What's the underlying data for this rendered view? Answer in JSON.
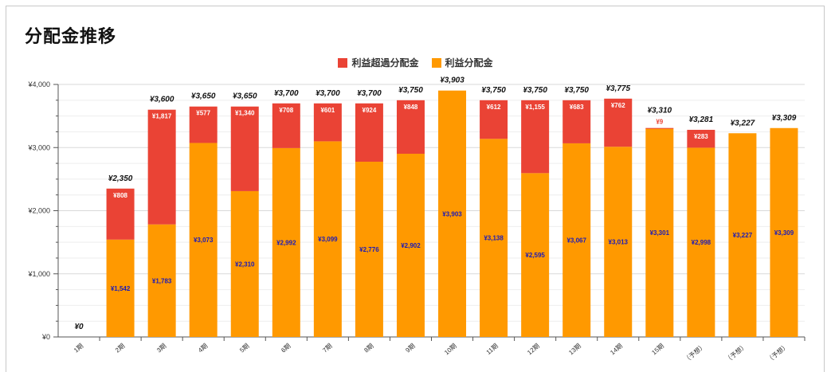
{
  "title": "分配金推移",
  "legend": [
    {
      "name": "利益超過分配金",
      "color": "#ea4335"
    },
    {
      "name": "利益分配金",
      "color": "#ff9900"
    }
  ],
  "chart_data": {
    "type": "bar",
    "stacked": true,
    "title": "分配金推移",
    "categories": [
      "1期",
      "2期",
      "3期",
      "4期",
      "5期",
      "6期",
      "7期",
      "8期",
      "9期",
      "10期",
      "11期",
      "12期",
      "13期",
      "14期",
      "15期",
      "（予想）",
      "（予想）",
      "（予想）"
    ],
    "series": [
      {
        "name": "利益分配金",
        "color": "#ff9900",
        "values": [
          0,
          1542,
          1783,
          3073,
          2310,
          2992,
          3099,
          2776,
          2902,
          3903,
          3138,
          2595,
          3067,
          3013,
          3301,
          2998,
          3227,
          3309
        ],
        "labels": [
          "",
          "¥1,542",
          "¥1,783",
          "¥3,073",
          "¥2,310",
          "¥2,992",
          "¥3,099",
          "¥2,776",
          "¥2,902",
          "¥3,903",
          "¥3,138",
          "¥2,595",
          "¥3,067",
          "¥3,013",
          "¥3,301",
          "¥2,998",
          "¥3,227",
          "¥3,309"
        ]
      },
      {
        "name": "利益超過分配金",
        "color": "#ea4335",
        "values": [
          0,
          808,
          1817,
          577,
          1340,
          708,
          601,
          924,
          848,
          0,
          612,
          1155,
          683,
          762,
          9,
          283,
          0,
          0
        ],
        "labels": [
          "",
          "¥808",
          "¥1,817",
          "¥577",
          "¥1,340",
          "¥708",
          "¥601",
          "¥924",
          "¥848",
          "",
          "¥612",
          "¥1,155",
          "¥683",
          "¥762",
          "¥9",
          "¥283",
          "",
          ""
        ]
      }
    ],
    "totals": [
      0,
      2350,
      3600,
      3650,
      3650,
      3700,
      3700,
      3700,
      3750,
      3903,
      3750,
      3750,
      3750,
      3775,
      3310,
      3281,
      3227,
      3309
    ],
    "total_labels": [
      "¥0",
      "¥2,350",
      "¥3,600",
      "¥3,650",
      "¥3,650",
      "¥3,700",
      "¥3,700",
      "¥3,700",
      "¥3,750",
      "¥3,903",
      "¥3,750",
      "¥3,750",
      "¥3,750",
      "¥3,775",
      "¥3,310",
      "¥3,281",
      "¥3,227",
      "¥3,309"
    ],
    "y_ticks": [
      "¥0",
      "¥1,000",
      "¥2,000",
      "¥3,000",
      "¥4,000"
    ],
    "ylim": [
      0,
      4000
    ],
    "grid": true,
    "legend_position": "top-center"
  }
}
